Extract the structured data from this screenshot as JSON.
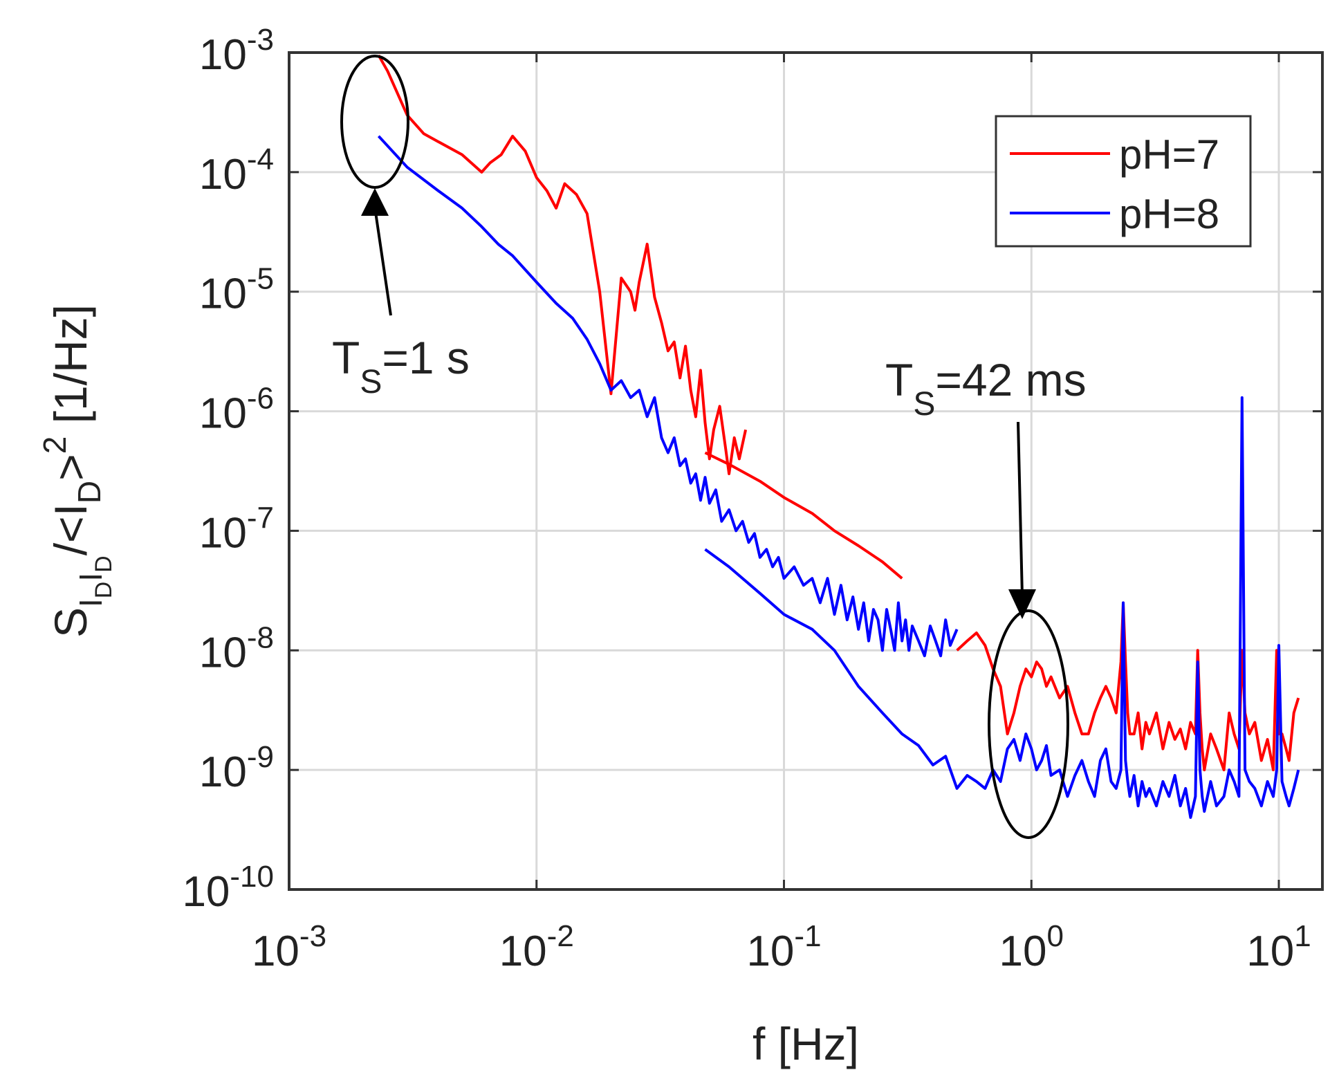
{
  "chart_data": {
    "type": "line",
    "scale": "log-log",
    "xlabel": "f [Hz]",
    "ylabel": {
      "main": "S",
      "sub": "I",
      "subsub": "D",
      "sub2": "I",
      "subsub2": "D",
      "rest": "/<I",
      "rest_sub": "D",
      "rest2": ">",
      "rest2_sup": "2",
      "unit": " [1/Hz]"
    },
    "xlim": [
      0.001,
      15
    ],
    "ylim": [
      1e-10,
      0.001
    ],
    "grid": true,
    "x_ticks": [
      {
        "base": "10",
        "exp": "-3"
      },
      {
        "base": "10",
        "exp": "-2"
      },
      {
        "base": "10",
        "exp": "-1"
      },
      {
        "base": "10",
        "exp": "0"
      },
      {
        "base": "10",
        "exp": "1"
      }
    ],
    "y_ticks": [
      {
        "base": "10",
        "exp": "-3"
      },
      {
        "base": "10",
        "exp": "-4"
      },
      {
        "base": "10",
        "exp": "-5"
      },
      {
        "base": "10",
        "exp": "-6"
      },
      {
        "base": "10",
        "exp": "-7"
      },
      {
        "base": "10",
        "exp": "-8"
      },
      {
        "base": "10",
        "exp": "-9"
      },
      {
        "base": "10",
        "exp": "-10"
      }
    ],
    "legend": {
      "placement": "top-right",
      "entries": [
        {
          "label": "pH=7",
          "color": "#ff0000"
        },
        {
          "label": "pH=8",
          "color": "#0000ff"
        }
      ]
    },
    "series": [
      {
        "name": "pH=7",
        "color": "#ff0000",
        "segments": [
          {
            "x": [
              0.0023,
              0.0025,
              0.003,
              0.0035,
              0.004,
              0.005,
              0.006,
              0.0065,
              0.0072,
              0.008,
              0.009,
              0.01,
              0.011,
              0.012,
              0.013,
              0.0145,
              0.016,
              0.018,
              0.02,
              0.022,
              0.024,
              0.025,
              0.026,
              0.028,
              0.03,
              0.032,
              0.034,
              0.036,
              0.038,
              0.04,
              0.042,
              0.044,
              0.046,
              0.048,
              0.05,
              0.052,
              0.055,
              0.058,
              0.06,
              0.063,
              0.066,
              0.07
            ],
            "y": [
              0.00095,
              0.0007,
              0.0003,
              0.00021,
              0.00018,
              0.00014,
              0.0001,
              0.00012,
              0.00014,
              0.0002,
              0.00015,
              9e-05,
              7e-05,
              5e-05,
              8e-05,
              6.5e-05,
              4.5e-05,
              1e-05,
              1.4e-06,
              1.3e-05,
              1e-05,
              7e-06,
              1.2e-05,
              2.5e-05,
              9e-06,
              5.5e-06,
              3.2e-06,
              3.8e-06,
              1.9e-06,
              3.5e-06,
              1.5e-06,
              9e-07,
              2.2e-06,
              8e-07,
              4e-07,
              7e-07,
              1.1e-06,
              5e-07,
              3e-07,
              6e-07,
              4e-07,
              7e-07
            ]
          },
          {
            "x": [
              0.048,
              0.06,
              0.08,
              0.1,
              0.13,
              0.16,
              0.2,
              0.25,
              0.3
            ],
            "y": [
              4.5e-07,
              3.6e-07,
              2.6e-07,
              1.9e-07,
              1.4e-07,
              1e-07,
              7.5e-08,
              5.5e-08,
              4e-08
            ]
          },
          {
            "x": [
              0.5,
              0.55,
              0.6,
              0.65,
              0.7,
              0.75,
              0.8,
              0.85,
              0.9,
              0.95,
              1.0,
              1.05,
              1.1,
              1.15,
              1.2,
              1.3,
              1.4,
              1.5,
              1.6,
              1.7,
              1.8,
              1.9,
              2.0,
              2.1,
              2.2,
              2.3,
              2.35,
              2.4,
              2.45,
              2.5,
              2.6,
              2.7,
              2.8,
              2.9,
              3.0,
              3.2,
              3.4,
              3.6,
              3.8,
              4.0,
              4.2,
              4.4,
              4.6,
              4.7,
              4.8,
              4.9,
              5.0,
              5.3,
              5.6,
              6.0,
              6.3,
              6.6,
              6.9,
              7.1,
              7.3,
              7.6,
              8.0,
              8.5,
              9.0,
              9.5,
              9.8,
              10.0,
              10.3,
              10.7,
              11.0,
              11.5,
              12.0
            ],
            "y": [
              1e-08,
              1.2e-08,
              1.4e-08,
              1.1e-08,
              7e-09,
              5e-09,
              2e-09,
              3e-09,
              5e-09,
              7e-09,
              6e-09,
              8e-09,
              7e-09,
              5e-09,
              6e-09,
              4e-09,
              5e-09,
              3e-09,
              2e-09,
              2e-09,
              3e-09,
              4e-09,
              5e-09,
              4e-09,
              3e-09,
              8e-09,
              2.5e-08,
              8e-09,
              3e-09,
              2e-09,
              2e-09,
              3e-09,
              1.5e-09,
              2.5e-09,
              2e-09,
              3e-09,
              1.5e-09,
              2.5e-09,
              1.8e-09,
              2.2e-09,
              1.5e-09,
              2.5e-09,
              2e-09,
              1e-08,
              3e-09,
              1.5e-09,
              1e-09,
              2e-09,
              1.5e-09,
              1e-09,
              3e-09,
              2e-09,
              1.5e-09,
              1e-08,
              3e-09,
              2e-09,
              2.5e-09,
              1.2e-09,
              1.8e-09,
              1e-09,
              1e-08,
              2e-09,
              2e-09,
              1.5e-09,
              1.2e-09,
              3e-09,
              4e-09
            ]
          }
        ]
      },
      {
        "name": "pH=8",
        "color": "#0000ff",
        "segments": [
          {
            "x": [
              0.0023,
              0.003,
              0.004,
              0.005,
              0.006,
              0.007,
              0.008,
              0.01,
              0.012,
              0.014,
              0.016,
              0.018,
              0.02,
              0.022,
              0.024,
              0.026,
              0.028,
              0.03,
              0.032,
              0.034,
              0.036,
              0.038,
              0.04,
              0.042,
              0.044,
              0.046,
              0.048,
              0.05,
              0.053,
              0.056,
              0.06,
              0.064,
              0.068,
              0.072,
              0.076,
              0.08,
              0.085,
              0.09,
              0.095,
              0.1,
              0.11,
              0.12,
              0.13,
              0.14,
              0.15,
              0.16,
              0.17,
              0.18,
              0.19,
              0.2,
              0.21,
              0.22,
              0.23,
              0.24,
              0.25,
              0.26,
              0.27,
              0.28,
              0.29,
              0.3,
              0.31,
              0.32,
              0.33,
              0.35,
              0.37,
              0.39,
              0.41,
              0.43,
              0.45,
              0.47,
              0.5
            ],
            "y": [
              0.0002,
              0.00011,
              7e-05,
              5e-05,
              3.5e-05,
              2.5e-05,
              2e-05,
              1.2e-05,
              8e-06,
              6e-06,
              4e-06,
              2.5e-06,
              1.5e-06,
              1.8e-06,
              1.3e-06,
              1.5e-06,
              9e-07,
              1.3e-06,
              6e-07,
              4.5e-07,
              6e-07,
              3.5e-07,
              4e-07,
              2.5e-07,
              3e-07,
              1.8e-07,
              2.8e-07,
              1.7e-07,
              2.2e-07,
              1.2e-07,
              1.5e-07,
              1e-07,
              1.2e-07,
              8e-08,
              9.5e-08,
              6e-08,
              7e-08,
              5e-08,
              6e-08,
              4e-08,
              5e-08,
              3.5e-08,
              4e-08,
              2.5e-08,
              4e-08,
              2e-08,
              3.5e-08,
              1.8e-08,
              2.8e-08,
              1.5e-08,
              2.5e-08,
              1.2e-08,
              2.2e-08,
              1.8e-08,
              1e-08,
              2.2e-08,
              1.5e-08,
              1e-08,
              2.5e-08,
              1.2e-08,
              1.8e-08,
              1e-08,
              1.6e-08,
              1.2e-08,
              9e-09,
              1.6e-08,
              1.2e-08,
              9e-09,
              1.8e-08,
              1.1e-08,
              1.5e-08
            ]
          },
          {
            "x": [
              0.048,
              0.06,
              0.08,
              0.1,
              0.13,
              0.16,
              0.2,
              0.25,
              0.3,
              0.35,
              0.4,
              0.45,
              0.5,
              0.55,
              0.6,
              0.65,
              0.7,
              0.75,
              0.8,
              0.85,
              0.9,
              0.95,
              1.0,
              1.05,
              1.1,
              1.15,
              1.2,
              1.3,
              1.4,
              1.5,
              1.6,
              1.7,
              1.8,
              1.9,
              2.0,
              2.1,
              2.2,
              2.3,
              2.35,
              2.4,
              2.45,
              2.5,
              2.6,
              2.7,
              2.8,
              2.9,
              3.0,
              3.2,
              3.4,
              3.6,
              3.8,
              4.0,
              4.2,
              4.4,
              4.6,
              4.7,
              4.8,
              4.9,
              5.0,
              5.3,
              5.6,
              6.0,
              6.3,
              6.6,
              6.9,
              7.1,
              7.3,
              7.6,
              8.0,
              8.5,
              9.0,
              9.5,
              9.8,
              10.0,
              10.3,
              10.7,
              11.0,
              11.5,
              12.0
            ],
            "y": [
              7e-08,
              5e-08,
              3e-08,
              2e-08,
              1.5e-08,
              1e-08,
              5e-09,
              3e-09,
              2e-09,
              1.6e-09,
              1.1e-09,
              1.3e-09,
              7e-10,
              9e-10,
              8e-10,
              7e-10,
              1e-09,
              8e-10,
              1.5e-09,
              1.8e-09,
              1.2e-09,
              2e-09,
              1.5e-09,
              1e-09,
              1.2e-09,
              1.6e-09,
              9e-10,
              1e-09,
              6e-10,
              9e-10,
              1.2e-09,
              8e-10,
              6e-10,
              1.2e-09,
              1.5e-09,
              8e-10,
              7e-10,
              1e-09,
              2.5e-08,
              1.2e-09,
              8e-10,
              6e-10,
              9e-10,
              5e-10,
              8e-10,
              6e-10,
              7e-10,
              5e-10,
              8e-10,
              6e-10,
              9e-10,
              5e-10,
              7e-10,
              4e-10,
              6e-10,
              8e-09,
              1e-09,
              6e-10,
              4.5e-10,
              8e-10,
              5e-10,
              6e-10,
              1e-09,
              8e-10,
              6e-10,
              1.3e-06,
              1e-09,
              8e-10,
              7e-10,
              5e-10,
              8e-10,
              6e-10,
              1e-09,
              1.1e-08,
              8e-10,
              6e-10,
              5e-10,
              7e-10,
              1e-09
            ]
          }
        ]
      }
    ],
    "annotations": [
      {
        "text": "T",
        "sub": "S",
        "rest": "=1 s",
        "target_x": 0.0025,
        "target_y": 0.0003
      },
      {
        "text": "T",
        "sub": "S",
        "rest": "=42 ms",
        "target_x": 1.1,
        "target_y": 2e-09
      }
    ]
  }
}
